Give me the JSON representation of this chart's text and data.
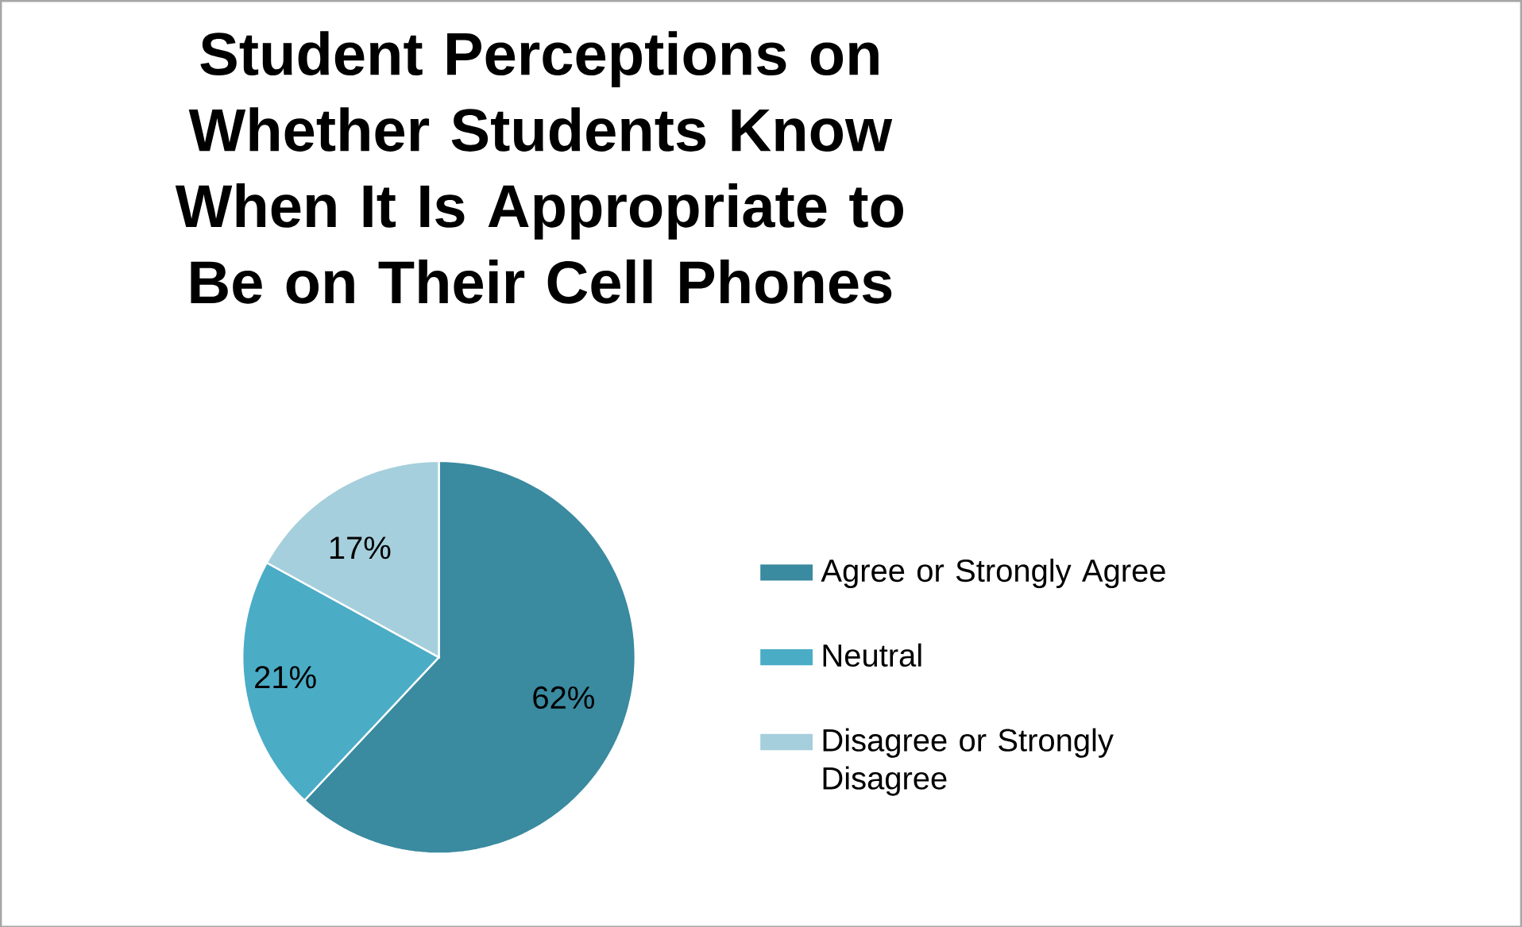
{
  "chart_data": {
    "type": "pie",
    "title": "Student Perceptions on Whether Students Know When It Is Appropriate to Be on Their Cell Phones",
    "categories": [
      "Agree or Strongly Agree",
      "Neutral",
      "Disagree or Strongly Disagree"
    ],
    "values": [
      62,
      21,
      17
    ],
    "value_labels": [
      "62%",
      "21%",
      "17%"
    ],
    "colors": [
      "#3a8aa0",
      "#4bacc6",
      "#a5cfdc"
    ],
    "legend": "right"
  }
}
